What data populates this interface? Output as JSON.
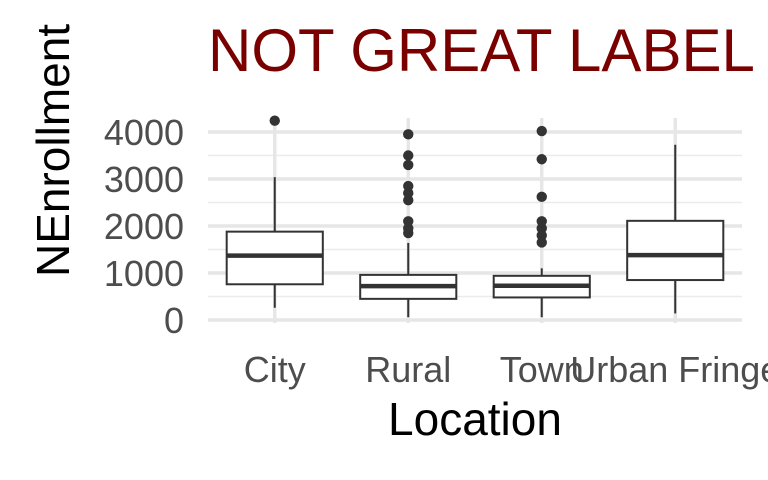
{
  "chart_data": {
    "type": "boxplot",
    "title": "NOT GREAT LABEL",
    "title_color": "#7a0000",
    "xlabel": "Location",
    "ylabel": "NEnrollment",
    "categories": [
      "City",
      "Rural",
      "Town",
      "Urban Fringe"
    ],
    "ylim": [
      0,
      4200
    ],
    "yticks": [
      0,
      1000,
      2000,
      3000,
      4000
    ],
    "grid": true,
    "legend": "none",
    "boxes": [
      {
        "category": "City",
        "min": 260,
        "q1": 760,
        "median": 1370,
        "q3": 1880,
        "max": 3040,
        "outliers": [
          4240
        ]
      },
      {
        "category": "Rural",
        "min": 60,
        "q1": 450,
        "median": 720,
        "q3": 960,
        "max": 1640,
        "outliers": [
          1850,
          1950,
          2100,
          2550,
          2700,
          2850,
          3300,
          3500,
          3950
        ]
      },
      {
        "category": "Town",
        "min": 60,
        "q1": 480,
        "median": 730,
        "q3": 940,
        "max": 1100,
        "outliers": [
          1650,
          1800,
          1950,
          2100,
          2620,
          3420,
          4020
        ]
      },
      {
        "category": "Urban Fringe",
        "min": 140,
        "q1": 850,
        "median": 1380,
        "q3": 2110,
        "max": 3730,
        "outliers": []
      }
    ]
  }
}
